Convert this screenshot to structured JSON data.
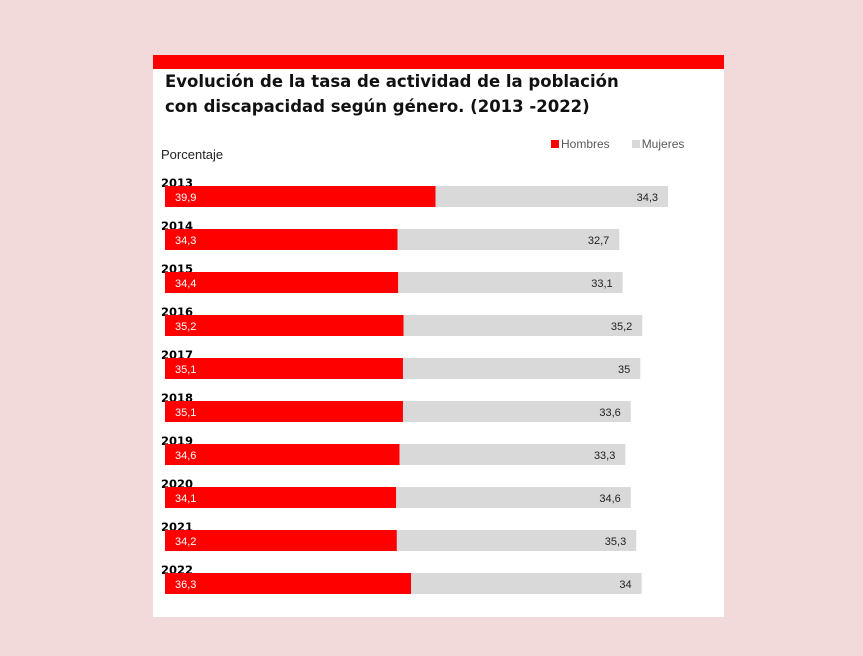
{
  "chart_data": {
    "type": "bar",
    "orientation": "horizontal",
    "stacked": true,
    "title_lines": [
      "Evolución de la tasa de actividad de la población",
      "con discapacidad según género.  (2013 -2022)"
    ],
    "ylabel": "Porcentaje",
    "legend_position": "top-right",
    "grid": false,
    "categories": [
      "2013",
      "2014",
      "2015",
      "2016",
      "2017",
      "2018",
      "2019",
      "2020",
      "2021",
      "2022"
    ],
    "series": [
      {
        "name": "Hombres",
        "color": "#ff0000",
        "values": [
          39.9,
          34.3,
          34.4,
          35.2,
          35.1,
          35.1,
          34.6,
          34.1,
          34.2,
          36.3
        ],
        "labels": [
          "39,9",
          "34,3",
          "34,4",
          "35,2",
          "35,1",
          "35,1",
          "34,6",
          "34,1",
          "34,2",
          "36,3"
        ]
      },
      {
        "name": "Mujeres",
        "color": "#d9d9d9",
        "values": [
          34.3,
          32.7,
          33.1,
          35.2,
          35,
          33.6,
          33.3,
          34.6,
          35.3,
          34
        ],
        "labels": [
          "34,3",
          "32,7",
          "33,1",
          "35,2",
          "35",
          "33,6",
          "33,3",
          "34,6",
          "35,3",
          "34"
        ]
      }
    ]
  }
}
